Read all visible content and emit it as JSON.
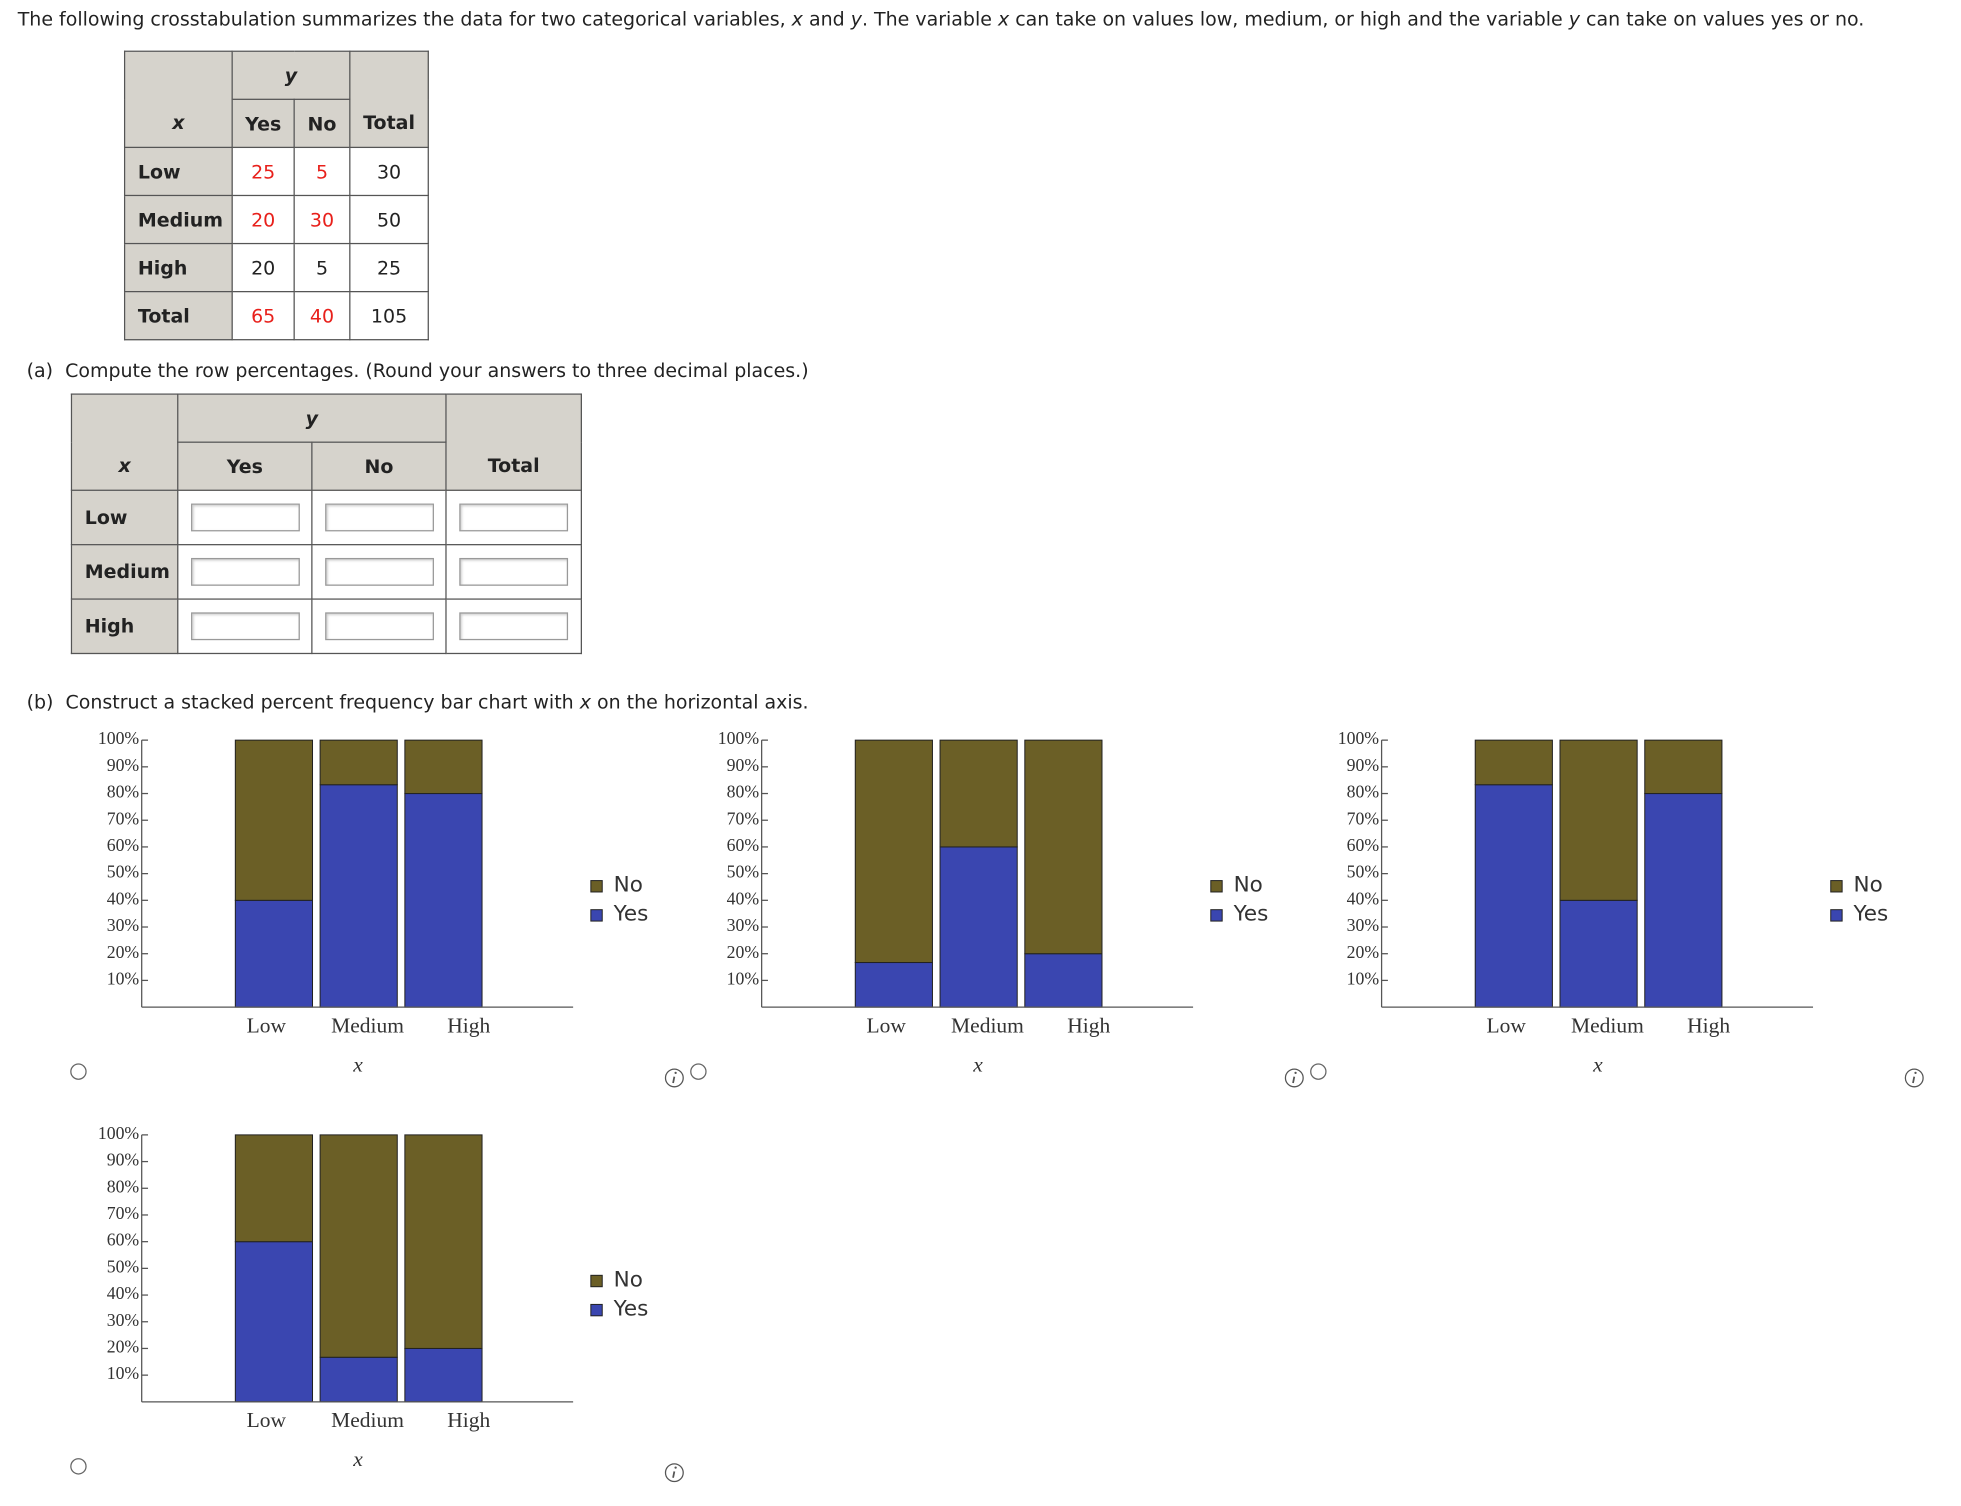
{
  "question": [
    "The following crosstabulation summarizes the data for two categorical variables, ",
    "x",
    " and ",
    "y",
    ". The variable ",
    "x",
    " can take on values low, medium, or high and the variable ",
    "y",
    " can take on values yes or no."
  ],
  "crosstab": {
    "x_label": "x",
    "y_label": "y",
    "columns": [
      "Yes",
      "No",
      "Total"
    ],
    "rows": [
      {
        "label": "Low",
        "cells": [
          25,
          5,
          30
        ]
      },
      {
        "label": "Medium",
        "cells": [
          20,
          30,
          50
        ]
      },
      {
        "label": "High",
        "cells": [
          20,
          5,
          25
        ]
      },
      {
        "label": "Total",
        "cells": [
          65,
          40,
          105
        ]
      }
    ]
  },
  "part_a": {
    "label": "(a)",
    "text": "Compute the row percentages. (Round your answers to three decimal places.)",
    "table": {
      "x_label": "x",
      "y_label": "y",
      "columns": [
        "Yes",
        "No",
        "Total"
      ],
      "rows": [
        "Low",
        "Medium",
        "High"
      ]
    }
  },
  "part_b": {
    "label": "(b)",
    "text": [
      "Construct a stacked percent frequency bar chart with ",
      "x",
      " on the horizontal axis."
    ]
  },
  "chart_data": [
    {
      "type": "stacked_bar",
      "categories": [
        "Low",
        "Medium",
        "High"
      ],
      "x_label": "x",
      "series": [
        {
          "name": "Yes",
          "color": "#3a46b0",
          "values": [
            40,
            83.3,
            80
          ]
        },
        {
          "name": "No",
          "color": "#6b5f26",
          "values": [
            60,
            16.7,
            20
          ]
        }
      ],
      "ylim": [
        0,
        100
      ],
      "yticks": [
        {
          "value": 10,
          "label": "10%"
        },
        {
          "value": 20,
          "label": "20%"
        },
        {
          "value": 30,
          "label": "30%"
        },
        {
          "value": 40,
          "label": "40%"
        },
        {
          "value": 50,
          "label": "50%"
        },
        {
          "value": 60,
          "label": "60%"
        },
        {
          "value": 70,
          "label": "70%"
        },
        {
          "value": 80,
          "label": "80%"
        },
        {
          "value": 90,
          "label": "90%"
        },
        {
          "value": 100,
          "label": "100%"
        }
      ]
    },
    {
      "type": "stacked_bar",
      "categories": [
        "Low",
        "Medium",
        "High"
      ],
      "x_label": "x",
      "series": [
        {
          "name": "Yes",
          "color": "#3a46b0",
          "values": [
            16.7,
            60,
            20
          ]
        },
        {
          "name": "No",
          "color": "#6b5f26",
          "values": [
            83.3,
            40,
            80
          ]
        }
      ],
      "ylim": [
        0,
        100
      ],
      "yticks": [
        {
          "value": 10,
          "label": "10%"
        },
        {
          "value": 20,
          "label": "20%"
        },
        {
          "value": 30,
          "label": "30%"
        },
        {
          "value": 40,
          "label": "40%"
        },
        {
          "value": 50,
          "label": "50%"
        },
        {
          "value": 60,
          "label": "60%"
        },
        {
          "value": 70,
          "label": "70%"
        },
        {
          "value": 80,
          "label": "80%"
        },
        {
          "value": 90,
          "label": "90%"
        },
        {
          "value": 100,
          "label": "100%"
        }
      ]
    },
    {
      "type": "stacked_bar",
      "categories": [
        "Low",
        "Medium",
        "High"
      ],
      "x_label": "x",
      "series": [
        {
          "name": "Yes",
          "color": "#3a46b0",
          "values": [
            83.3,
            40,
            80
          ]
        },
        {
          "name": "No",
          "color": "#6b5f26",
          "values": [
            16.7,
            60,
            20
          ]
        }
      ],
      "ylim": [
        0,
        100
      ],
      "yticks": [
        {
          "value": 10,
          "label": "10%"
        },
        {
          "value": 20,
          "label": "20%"
        },
        {
          "value": 30,
          "label": "30%"
        },
        {
          "value": 40,
          "label": "40%"
        },
        {
          "value": 50,
          "label": "50%"
        },
        {
          "value": 60,
          "label": "60%"
        },
        {
          "value": 70,
          "label": "70%"
        },
        {
          "value": 80,
          "label": "80%"
        },
        {
          "value": 90,
          "label": "90%"
        },
        {
          "value": 100,
          "label": "100%"
        }
      ]
    },
    {
      "type": "stacked_bar",
      "categories": [
        "Low",
        "Medium",
        "High"
      ],
      "x_label": "x",
      "series": [
        {
          "name": "Yes",
          "color": "#3a46b0",
          "values": [
            60,
            16.7,
            20
          ]
        },
        {
          "name": "No",
          "color": "#6b5f26",
          "values": [
            40,
            83.3,
            80
          ]
        }
      ],
      "ylim": [
        0,
        100
      ],
      "yticks": [
        {
          "value": 10,
          "label": "10%"
        },
        {
          "value": 20,
          "label": "20%"
        },
        {
          "value": 30,
          "label": "30%"
        },
        {
          "value": 40,
          "label": "40%"
        },
        {
          "value": 50,
          "label": "50%"
        },
        {
          "value": 60,
          "label": "60%"
        },
        {
          "value": 70,
          "label": "70%"
        },
        {
          "value": 80,
          "label": "80%"
        },
        {
          "value": 90,
          "label": "90%"
        },
        {
          "value": 100,
          "label": "100%"
        }
      ]
    }
  ]
}
